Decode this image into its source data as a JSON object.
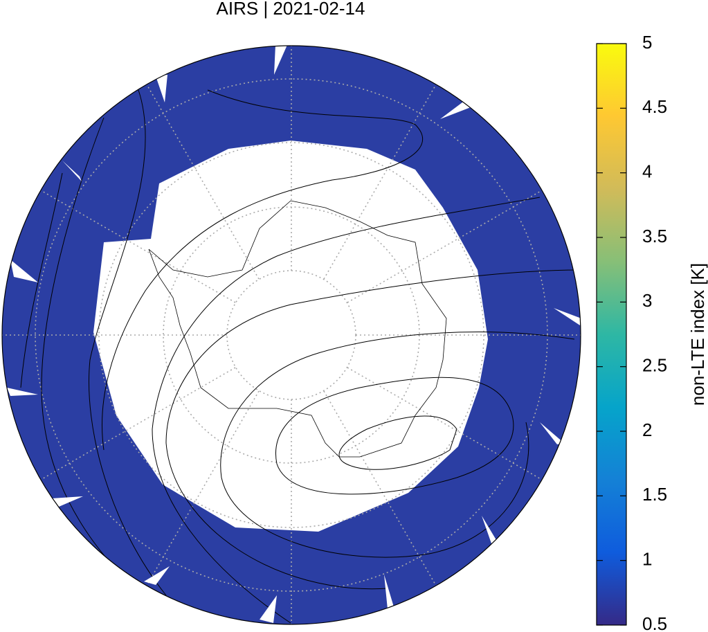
{
  "chart_data": {
    "type": "map",
    "title": "AIRS | 2021-02-14",
    "colorbar_label": "non-LTE index [K]",
    "zlim": [
      0.5,
      5
    ],
    "zticks": [
      0.5,
      1,
      1.5,
      2,
      2.5,
      3,
      3.5,
      4,
      4.5,
      5
    ],
    "colormap": [
      "#352a87",
      "#0f5cdd",
      "#1481d6",
      "#06a4ca",
      "#2eb7a4",
      "#87bf77",
      "#d1bb59",
      "#fec832",
      "#f9fb0e"
    ],
    "fill_color": "#2b3ea3"
  }
}
